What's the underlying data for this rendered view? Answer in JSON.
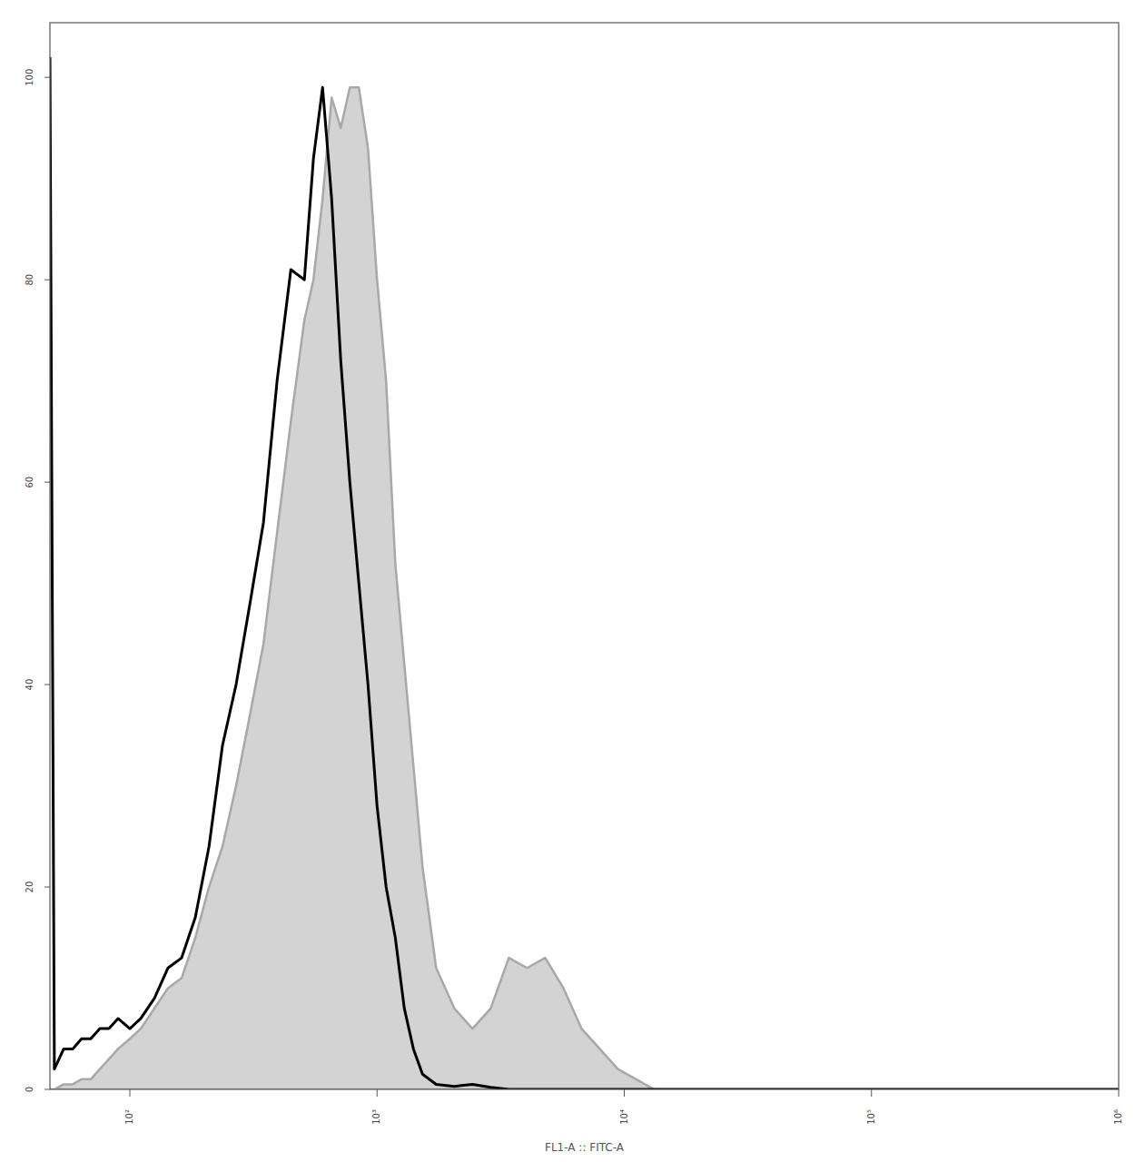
{
  "chart_data": {
    "type": "line",
    "x_label": "FL1-A :: FITC-A",
    "log": "x",
    "grid": false,
    "xlim": [
      47.5,
      1000000
    ],
    "ylim": [
      0,
      105.4
    ],
    "xticks": [
      {
        "value": 100,
        "label": "10²"
      },
      {
        "value": 1000,
        "label": "10³"
      },
      {
        "value": 10000,
        "label": "10⁴"
      },
      {
        "value": 100000,
        "label": "10⁵"
      },
      {
        "value": 1000000,
        "label": "10⁶"
      }
    ],
    "yticks": [
      0,
      20,
      40,
      60,
      80,
      100
    ],
    "x": [
      47.5,
      49.5,
      54,
      58.7,
      63.8,
      69.5,
      75.6,
      82.3,
      89.6,
      100,
      110.7,
      125.7,
      142.7,
      162,
      184,
      209,
      237,
      269,
      306,
      347,
      394,
      448,
      508,
      553,
      602,
      655,
      713,
      776,
      844,
      919,
      1000,
      1088,
      1185,
      1289,
      1403,
      1527,
      1734,
      2054,
      2432,
      2882,
      3412,
      4045,
      4786,
      5675,
      6714,
      7962,
      9419,
      11160,
      13210,
      18550,
      39700,
      141600,
      1000000
    ],
    "series": [
      {
        "type": "area",
        "color": "#d3d3d3",
        "values": [
          0,
          0,
          0.5,
          0.5,
          1,
          1,
          2,
          3,
          4,
          5,
          6,
          8,
          10,
          11,
          15,
          20,
          24,
          30,
          37,
          44,
          55,
          66,
          76,
          80,
          88,
          98,
          95,
          99,
          99,
          93,
          80,
          70,
          52,
          42,
          32,
          22,
          12,
          8,
          6,
          8,
          13,
          12,
          13,
          10,
          6,
          4,
          2,
          1,
          0,
          0,
          0,
          0,
          0
        ]
      },
      {
        "type": "line",
        "color": "#000000",
        "values": [
          102,
          2,
          4,
          4,
          5,
          5,
          6,
          6,
          7,
          6,
          7,
          9,
          12,
          13,
          17,
          24,
          34,
          40,
          48,
          56,
          70,
          81,
          80,
          92,
          99,
          88,
          72,
          60,
          50,
          40,
          28,
          20,
          15,
          8,
          4,
          1.5,
          0.5,
          0.3,
          0.5,
          0.2,
          0,
          0,
          0,
          0,
          0,
          0,
          0,
          0,
          0,
          0,
          0,
          0,
          0
        ]
      }
    ]
  }
}
